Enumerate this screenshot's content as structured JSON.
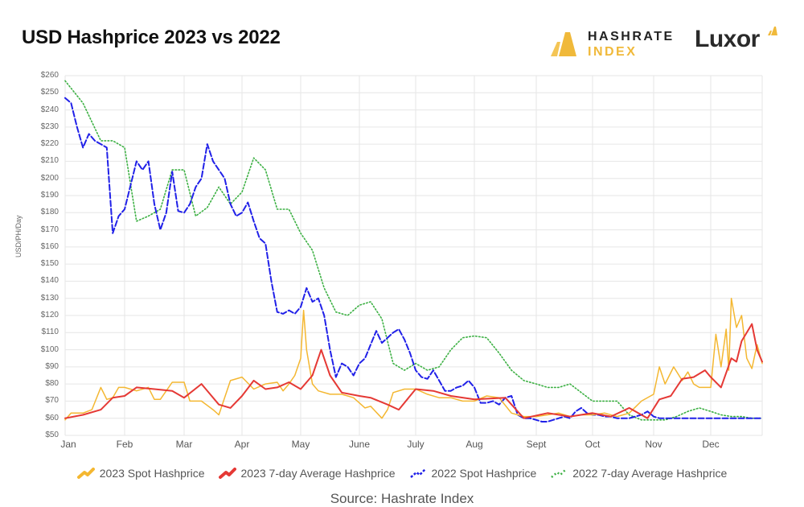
{
  "header": {
    "title": "USD Hashprice 2023 vs 2022",
    "logo_hashrate_line1": "HASHRATE",
    "logo_hashrate_line2": "INDEX",
    "logo_luxor": "Luxor"
  },
  "footer": {
    "source": "Source: Hashrate Index"
  },
  "colors": {
    "spot_2023": "#f4b731",
    "avg_2023": "#e53935",
    "spot_2022": "#2020e8",
    "avg_2022": "#3cb043",
    "grid": "#e6e6e6",
    "brand_gold": "#f0b93a"
  },
  "chart_data": {
    "type": "line",
    "title": "USD Hashprice 2023 vs 2022",
    "xlabel": "",
    "ylabel": "USD/PH/Day",
    "ylim": [
      50,
      260
    ],
    "y_ticks": [
      "$50",
      "$60",
      "$70",
      "$80",
      "$90",
      "$100",
      "$110",
      "$120",
      "$130",
      "$140",
      "$150",
      "$160",
      "$170",
      "$180",
      "$190",
      "$200",
      "$210",
      "$220",
      "$230",
      "$240",
      "$250",
      "$260"
    ],
    "categories": [
      "Jan",
      "Feb",
      "Mar",
      "Apr",
      "May",
      "June",
      "July",
      "Aug",
      "Sept",
      "Oct",
      "Nov",
      "Dec"
    ],
    "grid": true,
    "legend_position": "bottom",
    "series": [
      {
        "name": "2023 Spot Hashprice",
        "style": "solid-thin",
        "x": [
          0,
          0.1,
          0.3,
          0.45,
          0.6,
          0.7,
          0.8,
          0.9,
          1.0,
          1.2,
          1.4,
          1.5,
          1.6,
          1.8,
          2.0,
          2.1,
          2.3,
          2.5,
          2.6,
          2.8,
          3.0,
          3.2,
          3.4,
          3.6,
          3.7,
          3.8,
          3.9,
          4.0,
          4.05,
          4.1,
          4.2,
          4.3,
          4.5,
          4.7,
          4.9,
          5.1,
          5.2,
          5.4,
          5.5,
          5.6,
          5.8,
          6.0,
          6.2,
          6.4,
          6.6,
          6.8,
          7.0,
          7.2,
          7.4,
          7.6,
          7.8,
          8.0,
          8.2,
          8.4,
          8.6,
          8.8,
          9.0,
          9.2,
          9.4,
          9.5,
          9.6,
          9.8,
          10.0,
          10.1,
          10.2,
          10.35,
          10.5,
          10.6,
          10.7,
          10.8,
          10.9,
          11.0,
          11.1,
          11.2,
          11.3,
          11.35,
          11.4,
          11.5,
          11.6,
          11.7,
          11.8,
          11.9,
          12.0
        ],
        "values": [
          59,
          63,
          63,
          65,
          78,
          71,
          72,
          78,
          78,
          76,
          78,
          71,
          71,
          81,
          81,
          70,
          70,
          65,
          62,
          82,
          84,
          77,
          80,
          81,
          76,
          80,
          85,
          95,
          123,
          100,
          80,
          76,
          74,
          74,
          72,
          66,
          67,
          60,
          65,
          75,
          77,
          77,
          74,
          72,
          72,
          70,
          70,
          73,
          72,
          63,
          61,
          61,
          62,
          63,
          61,
          62,
          62,
          63,
          61,
          62,
          63,
          70,
          74,
          90,
          80,
          90,
          82,
          87,
          80,
          78,
          78,
          78,
          109,
          90,
          112,
          88,
          130,
          113,
          120,
          95,
          89,
          103,
          92
        ]
      },
      {
        "name": "2023 7-day Average Hashprice",
        "style": "solid-thick",
        "x": [
          0,
          0.3,
          0.6,
          0.8,
          1.0,
          1.2,
          1.5,
          1.8,
          2.0,
          2.3,
          2.6,
          2.8,
          3.0,
          3.2,
          3.4,
          3.6,
          3.8,
          4.0,
          4.2,
          4.35,
          4.5,
          4.7,
          5.0,
          5.2,
          5.5,
          5.7,
          6.0,
          6.3,
          6.6,
          7.0,
          7.5,
          7.8,
          8.2,
          8.6,
          9.0,
          9.3,
          9.6,
          9.9,
          10.1,
          10.3,
          10.5,
          10.7,
          10.9,
          11.0,
          11.2,
          11.4,
          11.5,
          11.6,
          11.8,
          11.9,
          12.0
        ],
        "values": [
          60,
          62,
          65,
          72,
          73,
          78,
          77,
          76,
          72,
          80,
          68,
          66,
          73,
          82,
          77,
          78,
          81,
          77,
          85,
          100,
          85,
          75,
          73,
          72,
          68,
          65,
          77,
          76,
          73,
          71,
          72,
          60,
          63,
          61,
          63,
          61,
          66,
          60,
          71,
          73,
          83,
          84,
          88,
          84,
          78,
          95,
          93,
          105,
          115,
          100,
          93
        ]
      },
      {
        "name": "2022 Spot Hashprice",
        "style": "dashed",
        "x": [
          0,
          0.1,
          0.2,
          0.3,
          0.4,
          0.5,
          0.6,
          0.7,
          0.8,
          0.9,
          1.0,
          1.1,
          1.2,
          1.3,
          1.4,
          1.5,
          1.6,
          1.7,
          1.8,
          1.9,
          2.0,
          2.1,
          2.2,
          2.3,
          2.4,
          2.5,
          2.6,
          2.7,
          2.8,
          2.9,
          3.0,
          3.1,
          3.2,
          3.3,
          3.4,
          3.5,
          3.6,
          3.7,
          3.8,
          3.9,
          4.0,
          4.1,
          4.2,
          4.3,
          4.4,
          4.5,
          4.6,
          4.7,
          4.8,
          4.9,
          5.0,
          5.1,
          5.2,
          5.3,
          5.4,
          5.5,
          5.6,
          5.7,
          5.8,
          5.9,
          6.0,
          6.1,
          6.2,
          6.3,
          6.4,
          6.5,
          6.6,
          6.7,
          6.8,
          6.9,
          7.0,
          7.1,
          7.2,
          7.3,
          7.4,
          7.5,
          7.6,
          7.7,
          7.8,
          7.9,
          8.0,
          8.1,
          8.2,
          8.3,
          8.4,
          8.5,
          8.6,
          8.7,
          8.8,
          8.9,
          9.0,
          9.1,
          9.2,
          9.3,
          9.4,
          9.5,
          9.6,
          9.7,
          9.8,
          9.9,
          10.0,
          10.1,
          10.2,
          10.3,
          10.4,
          10.5,
          10.6,
          10.7,
          10.8,
          10.9,
          11.0,
          11.1,
          11.2,
          11.3,
          11.4,
          11.5,
          11.6,
          11.7,
          11.8,
          11.9,
          12.0
        ],
        "values": [
          247,
          244,
          230,
          218,
          226,
          222,
          220,
          218,
          168,
          178,
          182,
          196,
          210,
          205,
          210,
          185,
          170,
          180,
          204,
          181,
          180,
          185,
          195,
          200,
          220,
          210,
          205,
          200,
          185,
          178,
          180,
          186,
          175,
          165,
          162,
          140,
          122,
          121,
          123,
          121,
          125,
          136,
          128,
          130,
          120,
          100,
          84,
          92,
          90,
          85,
          92,
          95,
          103,
          111,
          104,
          107,
          110,
          112,
          106,
          98,
          88,
          84,
          83,
          88,
          82,
          76,
          76,
          78,
          79,
          82,
          78,
          69,
          69,
          70,
          68,
          72,
          73,
          62,
          60,
          60,
          59,
          58,
          58,
          59,
          60,
          61,
          60,
          64,
          66,
          63,
          62,
          62,
          61,
          61,
          60,
          60,
          60,
          61,
          62,
          64,
          61,
          60,
          60,
          60,
          60,
          60,
          60,
          60,
          60,
          60,
          60,
          60,
          60,
          60,
          60,
          60,
          60,
          60,
          60,
          60,
          60
        ]
      },
      {
        "name": "2022 7-day Average Hashprice",
        "style": "dotted",
        "x": [
          0,
          0.3,
          0.6,
          0.8,
          1.0,
          1.2,
          1.4,
          1.6,
          1.8,
          2.0,
          2.2,
          2.4,
          2.6,
          2.8,
          3.0,
          3.2,
          3.4,
          3.6,
          3.8,
          4.0,
          4.2,
          4.4,
          4.6,
          4.8,
          5.0,
          5.2,
          5.4,
          5.6,
          5.8,
          6.0,
          6.2,
          6.4,
          6.6,
          6.8,
          7.0,
          7.2,
          7.4,
          7.6,
          7.8,
          8.0,
          8.2,
          8.4,
          8.6,
          8.8,
          9.0,
          9.2,
          9.4,
          9.6,
          9.8,
          10.0,
          10.2,
          10.4,
          10.6,
          10.8,
          11.0,
          11.2,
          11.4,
          11.6,
          11.8,
          12.0
        ],
        "values": [
          257,
          244,
          222,
          222,
          218,
          175,
          178,
          182,
          205,
          205,
          178,
          183,
          195,
          185,
          192,
          212,
          205,
          182,
          182,
          168,
          158,
          136,
          122,
          120,
          126,
          128,
          118,
          92,
          88,
          92,
          88,
          90,
          100,
          107,
          108,
          107,
          98,
          88,
          82,
          80,
          78,
          78,
          80,
          75,
          70,
          70,
          70,
          62,
          59,
          59,
          59,
          61,
          64,
          66,
          64,
          62,
          61,
          61,
          60,
          60
        ]
      }
    ]
  },
  "legend": [
    {
      "label": "2023 Spot Hashprice"
    },
    {
      "label": "2023 7-day Average Hashprice"
    },
    {
      "label": "2022 Spot Hashprice"
    },
    {
      "label": "2022 7-day Average Hashprice"
    }
  ]
}
